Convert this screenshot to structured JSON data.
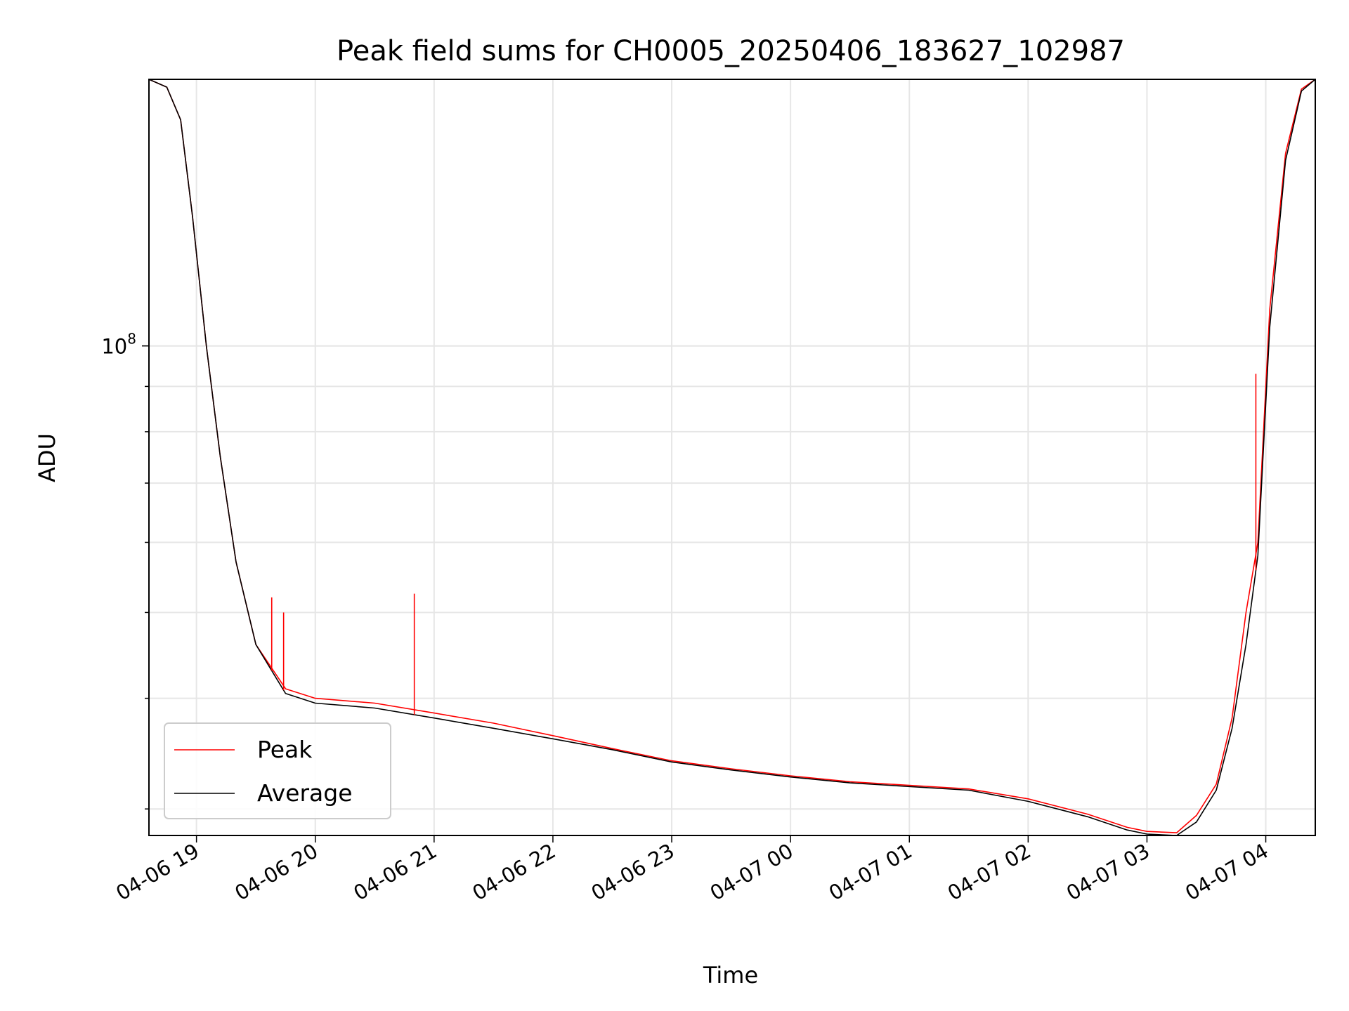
{
  "chart_data": {
    "type": "line",
    "title": "Peak field sums for CH0005_20250406_183627_102987",
    "xlabel": "Time",
    "ylabel": "ADU",
    "y_scale": "log",
    "grid": true,
    "legend_placement": "lower-left",
    "x_range": [
      "2025-04-06 18:36",
      "2025-04-07 04:25"
    ],
    "ylim": [
      28000000,
      200000000
    ],
    "x_ticks": [
      "04-06 19",
      "04-06 20",
      "04-06 21",
      "04-06 22",
      "04-06 23",
      "04-07 00",
      "04-07 01",
      "04-07 02",
      "04-07 03",
      "04-07 04"
    ],
    "y_ticks": [
      {
        "value": 100000000,
        "label_base": "10",
        "label_exp": "8"
      }
    ],
    "series": [
      {
        "name": "Peak",
        "color": "#ff0000",
        "x": [
          "2025-04-06 18:36",
          "2025-04-06 18:45",
          "2025-04-06 18:52",
          "2025-04-06 18:58",
          "2025-04-06 19:05",
          "2025-04-06 19:12",
          "2025-04-06 19:20",
          "2025-04-06 19:30",
          "2025-04-06 19:45",
          "2025-04-06 20:00",
          "2025-04-06 20:30",
          "2025-04-06 21:00",
          "2025-04-06 21:30",
          "2025-04-06 22:00",
          "2025-04-06 22:30",
          "2025-04-06 23:00",
          "2025-04-06 23:30",
          "2025-04-07 00:00",
          "2025-04-07 00:30",
          "2025-04-07 01:00",
          "2025-04-07 01:30",
          "2025-04-07 02:00",
          "2025-04-07 02:30",
          "2025-04-07 02:50",
          "2025-04-07 03:00",
          "2025-04-07 03:15",
          "2025-04-07 03:25",
          "2025-04-07 03:35",
          "2025-04-07 03:43",
          "2025-04-07 03:50",
          "2025-04-07 03:56",
          "2025-04-07 04:02",
          "2025-04-07 04:10",
          "2025-04-07 04:18",
          "2025-04-07 04:25"
        ],
        "y": [
          200000000,
          196000000,
          180000000,
          140000000,
          100000000,
          75000000,
          57000000,
          46000000,
          41000000,
          40000000,
          39500000,
          38500000,
          37500000,
          36300000,
          35100000,
          34000000,
          33300000,
          32700000,
          32200000,
          31900000,
          31600000,
          30800000,
          29600000,
          28600000,
          28300000,
          28200000,
          29500000,
          32000000,
          38000000,
          50000000,
          60000000,
          110000000,
          165000000,
          195000000,
          200000000
        ]
      },
      {
        "name": "Average",
        "color": "#000000",
        "x": [
          "2025-04-06 18:36",
          "2025-04-06 18:45",
          "2025-04-06 18:52",
          "2025-04-06 18:58",
          "2025-04-06 19:05",
          "2025-04-06 19:12",
          "2025-04-06 19:20",
          "2025-04-06 19:30",
          "2025-04-06 19:45",
          "2025-04-06 20:00",
          "2025-04-06 20:30",
          "2025-04-06 21:00",
          "2025-04-06 21:30",
          "2025-04-06 22:00",
          "2025-04-06 22:30",
          "2025-04-06 23:00",
          "2025-04-06 23:30",
          "2025-04-07 00:00",
          "2025-04-07 00:30",
          "2025-04-07 01:00",
          "2025-04-07 01:30",
          "2025-04-07 02:00",
          "2025-04-07 02:30",
          "2025-04-07 02:50",
          "2025-04-07 03:00",
          "2025-04-07 03:15",
          "2025-04-07 03:25",
          "2025-04-07 03:35",
          "2025-04-07 03:43",
          "2025-04-07 03:50",
          "2025-04-07 03:56",
          "2025-04-07 04:02",
          "2025-04-07 04:10",
          "2025-04-07 04:18",
          "2025-04-07 04:25"
        ],
        "y": [
          200000000,
          196000000,
          180000000,
          140000000,
          100000000,
          75000000,
          57000000,
          46000000,
          40500000,
          39500000,
          39000000,
          38000000,
          37000000,
          36000000,
          35000000,
          33900000,
          33200000,
          32600000,
          32100000,
          31800000,
          31500000,
          30600000,
          29400000,
          28400000,
          28100000,
          28000000,
          29000000,
          31500000,
          37000000,
          46000000,
          58000000,
          105000000,
          162000000,
          194000000,
          200000000
        ]
      }
    ],
    "spikes": [
      {
        "series": "Peak",
        "x": "2025-04-06 19:38",
        "y": 52000000
      },
      {
        "series": "Peak",
        "x": "2025-04-06 19:44",
        "y": 50000000
      },
      {
        "series": "Peak",
        "x": "2025-04-06 20:50",
        "y": 52500000
      },
      {
        "series": "Peak",
        "x": "2025-04-07 03:55",
        "y": 93000000
      }
    ]
  }
}
